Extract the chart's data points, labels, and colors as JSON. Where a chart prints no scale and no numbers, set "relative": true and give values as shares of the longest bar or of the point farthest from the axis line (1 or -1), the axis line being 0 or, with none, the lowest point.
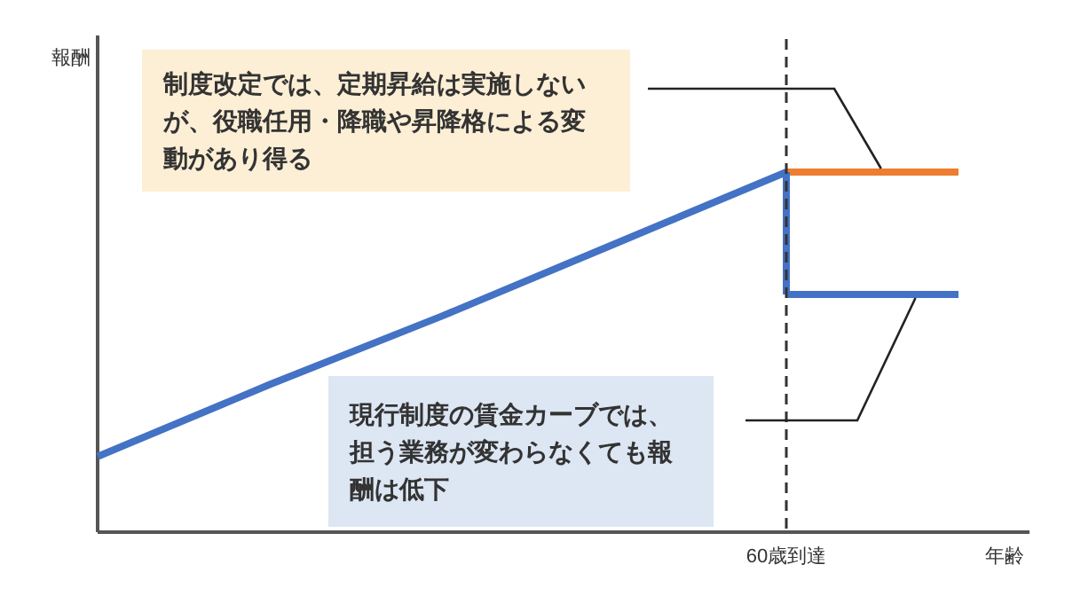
{
  "chart_data": {
    "type": "line",
    "relative": true,
    "xlabel": "年齢",
    "categories": [
      null,
      null,
      null,
      null,
      null,
      null
    ],
    "series": [
      {
        "color": "#4472c4",
        "values": [
          0.21,
          0.41,
          0.6,
          0.8,
          1,
          null
        ]
      },
      {
        "color": "#4472c4",
        "values": [
          null,
          null,
          null,
          null,
          0.66,
          0.66
        ]
      },
      {
        "color": "#ed7d31",
        "values": [
          null,
          null,
          null,
          null,
          1,
          1
        ]
      }
    ],
    "annotations": [
      "制度改定では、定期昇給は実施しないが、役職任用・降職や昇降格による変動があり得る",
      "現行制度の賃金カーブでは、担う業務が変わらなくても報酬は低下",
      "60歳到達",
      "報酬"
    ]
  }
}
